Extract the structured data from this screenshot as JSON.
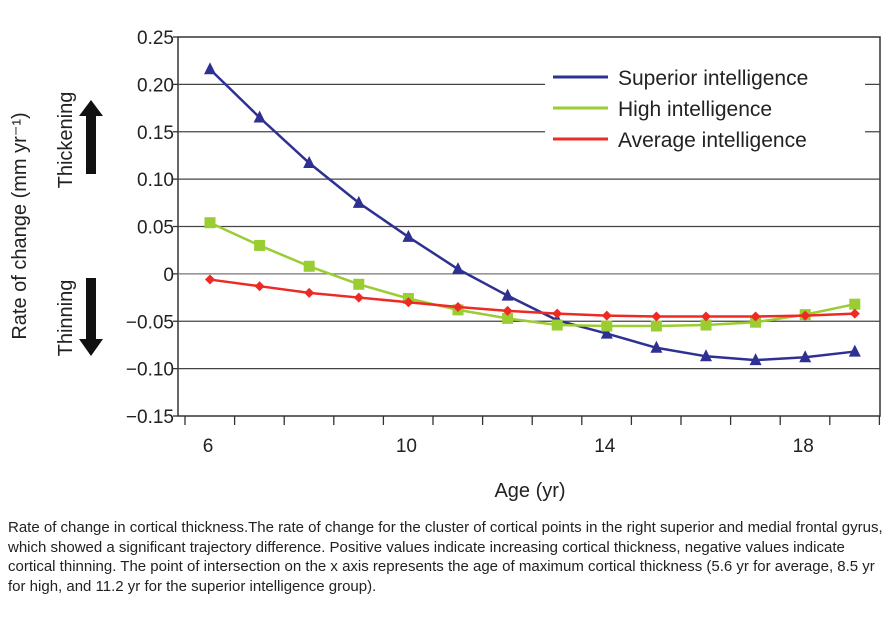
{
  "chart_data": {
    "type": "line",
    "xlabel": "Age (yr)",
    "ylabel": "Rate of change (mm yr⁻¹)",
    "xlim": [
      5.6,
      19.6
    ],
    "ylim": [
      -0.15,
      0.25
    ],
    "x_ticks": [
      6,
      10,
      14,
      18
    ],
    "y_ticks": [
      "0.25",
      "0.20",
      "0.15",
      "0.10",
      "0.05",
      "0",
      "−0.05",
      "−0.10",
      "−0.15"
    ],
    "y_tick_values": [
      0.25,
      0.2,
      0.15,
      0.1,
      0.05,
      0,
      -0.05,
      -0.1,
      -0.15
    ],
    "grid": true,
    "legend_position": "top-right",
    "annotations": {
      "up": "Thickening",
      "down": "Thinning"
    },
    "x": [
      6,
      7,
      8,
      9,
      10,
      11,
      12,
      13,
      14,
      15,
      16,
      17,
      18,
      19
    ],
    "series": [
      {
        "name": "Superior intelligence",
        "color": "#2e3192",
        "marker": "triangle",
        "values": [
          0.216,
          0.165,
          0.117,
          0.075,
          0.039,
          0.005,
          -0.023,
          -0.049,
          -0.063,
          -0.078,
          -0.087,
          -0.091,
          -0.088,
          -0.082
        ]
      },
      {
        "name": "High intelligence",
        "color": "#9acd32",
        "marker": "square",
        "values": [
          0.054,
          0.03,
          0.008,
          -0.011,
          -0.026,
          -0.038,
          -0.047,
          -0.054,
          -0.055,
          -0.055,
          -0.054,
          -0.051,
          -0.043,
          -0.032
        ]
      },
      {
        "name": "Average intelligence",
        "color": "#ee2a24",
        "marker": "diamond",
        "values": [
          -0.006,
          -0.013,
          -0.02,
          -0.025,
          -0.03,
          -0.035,
          -0.039,
          -0.042,
          -0.044,
          -0.045,
          -0.045,
          -0.045,
          -0.044,
          -0.042
        ]
      }
    ]
  },
  "caption": "Rate of change in cortical thickness.The rate of change for the cluster of cortical points in the right superior and medial frontal gyrus, which showed a significant trajectory difference. Positive values indicate increasing cortical thickness, negative values indicate cortical thinning. The point of intersection on the x axis represents the age of maximum cortical thickness (5.6 yr for average, 8.5 yr for high, and 11.2 yr for the superior intelligence group)."
}
